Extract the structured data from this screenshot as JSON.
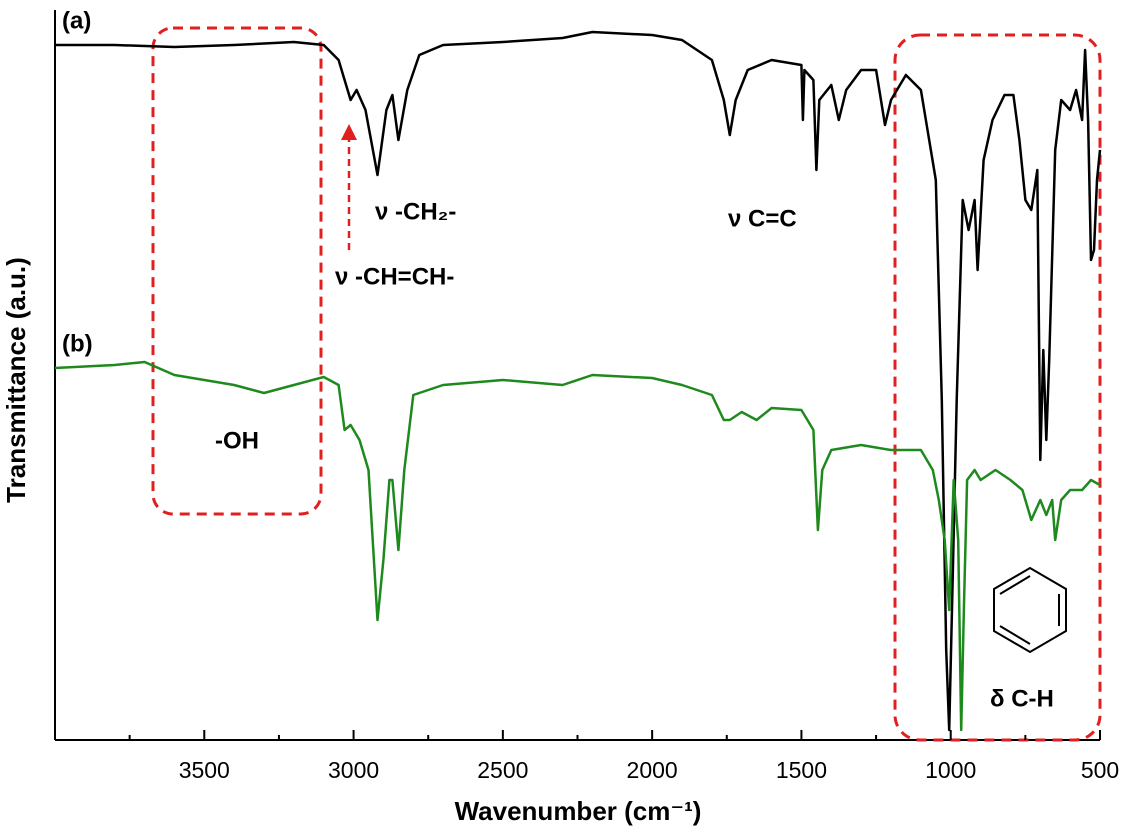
{
  "chart_data": {
    "type": "line",
    "xlabel": "Wavenumber (cm⁻¹)",
    "ylabel": "Transmittance (a.u.)",
    "xlim": [
      4000,
      500
    ],
    "xticks": [
      3500,
      3000,
      2500,
      2000,
      1500,
      1000,
      500
    ],
    "xticks_minor": [
      3750,
      3250,
      2750,
      2250,
      1750,
      1250,
      750
    ],
    "ylim": [
      0,
      73
    ],
    "label_a": "(a)",
    "label_b": "(b)",
    "annotation_ch2": "ν -CH₂-",
    "annotation_chch": "ν -CH=CH-",
    "annotation_cc": "ν C=C",
    "annotation_oh": "-OH",
    "annotation_ch": "δ C-H",
    "series": [
      {
        "color": "#000000",
        "x": [
          4000,
          3800,
          3600,
          3400,
          3200,
          3100,
          3050,
          3010,
          2990,
          2960,
          2920,
          2890,
          2870,
          2850,
          2820,
          2780,
          2700,
          2500,
          2300,
          2200,
          2000,
          1900,
          1800,
          1760,
          1740,
          1720,
          1680,
          1600,
          1500,
          1495,
          1490,
          1460,
          1450,
          1440,
          1400,
          1375,
          1350,
          1300,
          1250,
          1220,
          1200,
          1150,
          1100,
          1050,
          1030,
          1015,
          1005,
          995,
          980,
          960,
          940,
          920,
          910,
          890,
          860,
          820,
          790,
          770,
          750,
          730,
          710,
          700,
          690,
          680,
          670,
          650,
          630,
          600,
          580,
          560,
          550,
          540,
          530,
          520,
          510,
          500
        ],
        "values": [
          69.5,
          69.5,
          69.3,
          69.5,
          69.8,
          69.5,
          68,
          64,
          65,
          63,
          56.5,
          63,
          64.5,
          60,
          65,
          68.5,
          69.5,
          69.8,
          70.2,
          70.8,
          70.5,
          70,
          68,
          64,
          60.5,
          64,
          67,
          68,
          67.5,
          62,
          67,
          66,
          57,
          64,
          65.5,
          62,
          65,
          67,
          67,
          61.5,
          64,
          66.5,
          65,
          56,
          34,
          9,
          1,
          14,
          34,
          54,
          51,
          54,
          47,
          58,
          62,
          64.5,
          64.5,
          60,
          54,
          53,
          57,
          28,
          39,
          30,
          38,
          59,
          64,
          63,
          65,
          62,
          69,
          62,
          48,
          49,
          56,
          59
        ]
      },
      {
        "color": "#1e8a1e",
        "x": [
          4000,
          3800,
          3700,
          3600,
          3400,
          3300,
          3200,
          3100,
          3050,
          3030,
          3010,
          2980,
          2950,
          2920,
          2900,
          2880,
          2870,
          2850,
          2830,
          2800,
          2700,
          2500,
          2300,
          2200,
          2000,
          1900,
          1800,
          1760,
          1740,
          1700,
          1650,
          1600,
          1500,
          1460,
          1445,
          1430,
          1400,
          1300,
          1200,
          1100,
          1060,
          1040,
          1020,
          1005,
          990,
          975,
          965,
          955,
          945,
          920,
          900,
          850,
          800,
          760,
          730,
          700,
          680,
          660,
          650,
          630,
          600,
          560,
          530,
          500
        ],
        "values": [
          37.2,
          37.5,
          37.8,
          36.5,
          35.5,
          34.7,
          35.5,
          36.3,
          35.5,
          31,
          31.5,
          30,
          27,
          12,
          18,
          26,
          26,
          19,
          27,
          34.5,
          35.5,
          36,
          35.5,
          36.5,
          36.2,
          35.5,
          34.5,
          32,
          32,
          32.8,
          32,
          33.2,
          33,
          31,
          21,
          27,
          29,
          29.5,
          29,
          29,
          27,
          24,
          20,
          13,
          26,
          20,
          1,
          14,
          26,
          27,
          26,
          27,
          26,
          25,
          22,
          24,
          22.5,
          24,
          20,
          24,
          25,
          25,
          26,
          25.5
        ]
      }
    ]
  }
}
